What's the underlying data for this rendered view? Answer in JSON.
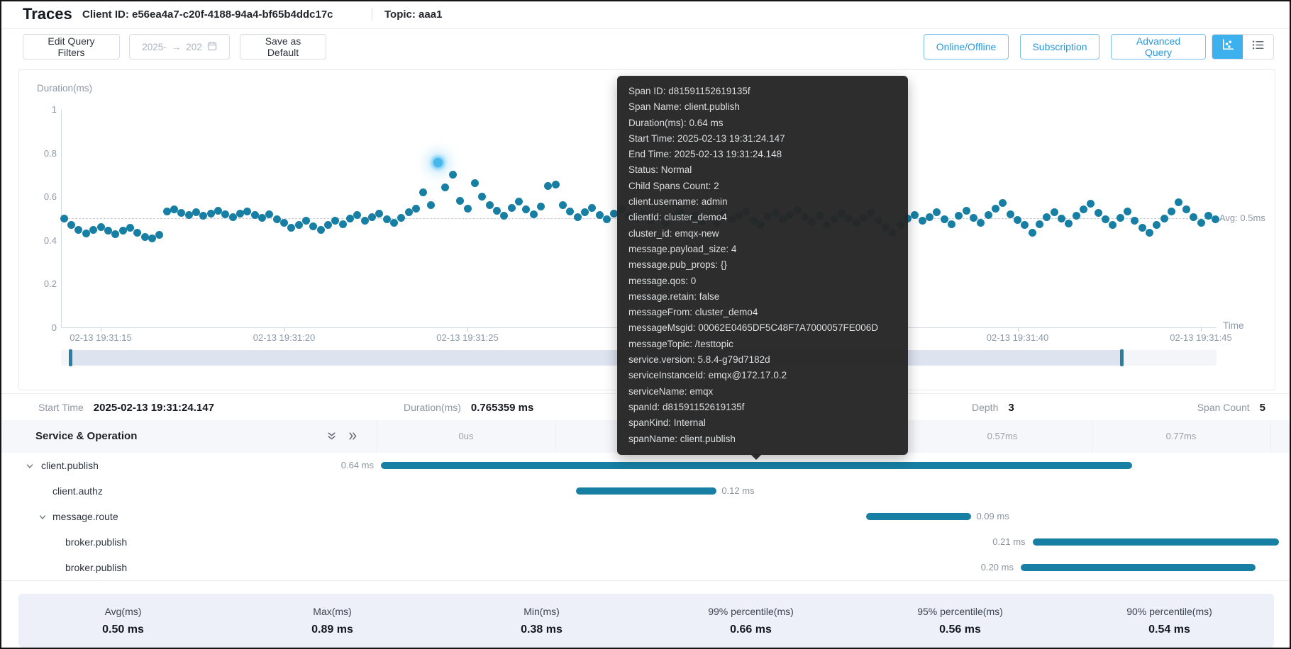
{
  "colors": {
    "accent": "#177fa3",
    "highlight": "#45b7ea",
    "toggle_active": "#3cb1ee",
    "button_blue": "#2798dc",
    "tooltip_bg": "#262626"
  },
  "header": {
    "title": "Traces",
    "client_id": "Client ID: e56ea4a7-c20f-4188-94a4-bf65b4ddc17c",
    "topic": "Topic: aaa1"
  },
  "toolbar": {
    "edit_filters": "Edit Query Filters",
    "date_start": "2025-",
    "date_end": "202",
    "save_default": "Save as Default",
    "online_offline": "Online/Offline",
    "subscription": "Subscription",
    "advanced_query": "Advanced Query"
  },
  "chart": {
    "y_label": "Duration(ms)",
    "x_label": "Time",
    "avg_label": "Avg: 0.5ms",
    "y_ticks": [
      {
        "v": 0,
        "label": "0"
      },
      {
        "v": 0.2,
        "label": "0.2"
      },
      {
        "v": 0.4,
        "label": "0.4"
      },
      {
        "v": 0.6,
        "label": "0.6"
      },
      {
        "v": 0.8,
        "label": "0.8"
      },
      {
        "v": 1,
        "label": "1"
      }
    ],
    "x_ticks": [
      {
        "t": 15,
        "label": "02-13 19:31:15"
      },
      {
        "t": 20,
        "label": "02-13 19:31:20"
      },
      {
        "t": 25,
        "label": "02-13 19:31:25"
      },
      {
        "t": 40,
        "label": "02-13 19:31:40"
      },
      {
        "t": 45,
        "label": "02-13 19:31:45"
      }
    ],
    "points": {
      "t0": 14.0,
      "dt": 0.2,
      "values": [
        0.5,
        0.47,
        0.445,
        0.43,
        0.446,
        0.46,
        0.443,
        0.428,
        0.442,
        0.455,
        0.432,
        0.415,
        0.408,
        0.425,
        0.53,
        0.54,
        0.525,
        0.515,
        0.528,
        0.512,
        0.52,
        0.535,
        0.518,
        0.505,
        0.522,
        0.53,
        0.515,
        0.502,
        0.518,
        0.495,
        0.478,
        0.455,
        0.47,
        0.488,
        0.462,
        0.445,
        0.468,
        0.49,
        0.472,
        0.5,
        0.515,
        0.488,
        0.505,
        0.522,
        0.495,
        0.478,
        0.502,
        0.528,
        0.545,
        0.62,
        0.56,
        0.755,
        0.64,
        0.7,
        0.58,
        0.545,
        0.66,
        0.6,
        0.56,
        0.535,
        0.512,
        0.548,
        0.575,
        0.54,
        0.518,
        0.552,
        0.648,
        0.655,
        0.56,
        0.53,
        0.505,
        0.528,
        0.548,
        0.515,
        0.495,
        0.52,
        0.542,
        0.51,
        0.5,
        0.52,
        0.488,
        0.505,
        0.478,
        0.512,
        0.53,
        0.498,
        0.515,
        0.485,
        0.505,
        0.478,
        0.52,
        0.495,
        0.512,
        0.532,
        0.488,
        0.47,
        0.508,
        0.525,
        0.495,
        0.515,
        0.538,
        0.505,
        0.482,
        0.512,
        0.47,
        0.495,
        0.52,
        0.5,
        0.478,
        0.502,
        0.525,
        0.49,
        0.46,
        0.432,
        0.47,
        0.498,
        0.515,
        0.488,
        0.505,
        0.528,
        0.495,
        0.472,
        0.51,
        0.535,
        0.502,
        0.48,
        0.515,
        0.545,
        0.57,
        0.518,
        0.492,
        0.468,
        0.435,
        0.472,
        0.505,
        0.528,
        0.498,
        0.475,
        0.512,
        0.54,
        0.568,
        0.525,
        0.495,
        0.47,
        0.502,
        0.53,
        0.488,
        0.455,
        0.432,
        0.468,
        0.5,
        0.532,
        0.572,
        0.54,
        0.505,
        0.478,
        0.51,
        0.495
      ]
    },
    "highlight": {
      "t": 24.2,
      "v": 0.755
    }
  },
  "tooltip": {
    "lines": [
      "Span ID: d81591152619135f",
      "Span Name: client.publish",
      "Duration(ms): 0.64 ms",
      "Start Time: 2025-02-13 19:31:24.147",
      "End Time: 2025-02-13 19:31:24.148",
      "Status: Normal",
      "Child Spans Count: 2",
      "client.username: admin",
      "clientId: cluster_demo4",
      "cluster_id: emqx-new",
      "message.payload_size: 4",
      "message.pub_props: {}",
      "message.qos: 0",
      "message.retain: false",
      "messageFrom: cluster_demo4",
      "messageMsgid: 00062E0465DF5C48F7A7000057FE006D",
      "messageTopic: /testtopic",
      "service.version: 5.8.4-g79d7182d",
      "serviceInstanceId: emqx@172.17.0.2",
      "serviceName: emqx",
      "spanId: d81591152619135f",
      "spanKind: Internal",
      "spanName: client.publish"
    ]
  },
  "summary": {
    "items": [
      {
        "label": "Start Time",
        "value": "2025-02-13 19:31:24.147"
      },
      {
        "label": "Duration(ms)",
        "value": "0.765359 ms"
      },
      {
        "label": "Depth",
        "value": "3"
      },
      {
        "label": "Span Count",
        "value": "5"
      }
    ]
  },
  "table": {
    "title": "Service & Operation",
    "time_cols": [
      "0us",
      "",
      "",
      "0.57ms",
      "0.77ms"
    ],
    "rows": [
      {
        "name": "client.publish",
        "level": 0,
        "expandable": true,
        "duration_label": "0.64 ms",
        "label_side": "left",
        "start_ms": 0,
        "duration_ms": 0.64
      },
      {
        "name": "client.authz",
        "level": 1,
        "expandable": false,
        "duration_label": "0.12 ms",
        "label_side": "right",
        "start_ms": 0.166,
        "duration_ms": 0.12
      },
      {
        "name": "message.route",
        "level": 1,
        "expandable": true,
        "duration_label": "0.09 ms",
        "label_side": "right",
        "start_ms": 0.413,
        "duration_ms": 0.09
      },
      {
        "name": "broker.publish",
        "level": 2,
        "expandable": false,
        "duration_label": "0.21 ms",
        "label_side": "left",
        "start_ms": 0.555,
        "duration_ms": 0.21
      },
      {
        "name": "broker.publish",
        "level": 2,
        "expandable": false,
        "duration_label": "0.20 ms",
        "label_side": "left",
        "start_ms": 0.545,
        "duration_ms": 0.2
      }
    ]
  },
  "stats": {
    "items": [
      {
        "label": "Avg(ms)",
        "value": "0.50 ms"
      },
      {
        "label": "Max(ms)",
        "value": "0.89 ms"
      },
      {
        "label": "Min(ms)",
        "value": "0.38 ms"
      },
      {
        "label": "99% percentile(ms)",
        "value": "0.66 ms"
      },
      {
        "label": "95% percentile(ms)",
        "value": "0.56 ms"
      },
      {
        "label": "90% percentile(ms)",
        "value": "0.54 ms"
      }
    ]
  }
}
